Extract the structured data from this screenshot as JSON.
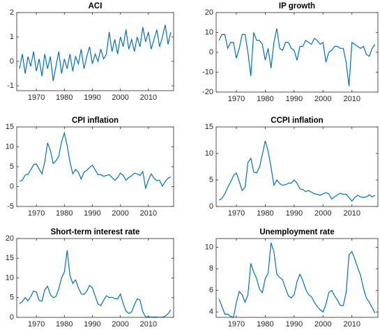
{
  "chart_data": [
    {
      "type": "line",
      "title": "ACI",
      "color": "#0072bd",
      "x": [
        1964,
        1965,
        1966,
        1967,
        1968,
        1969,
        1970,
        1971,
        1972,
        1973,
        1974,
        1975,
        1976,
        1977,
        1978,
        1979,
        1980,
        1981,
        1982,
        1983,
        1984,
        1985,
        1986,
        1987,
        1988,
        1989,
        1990,
        1991,
        1992,
        1993,
        1994,
        1995,
        1996,
        1997,
        1998,
        1999,
        2000,
        2001,
        2002,
        2003,
        2004,
        2005,
        2006,
        2007,
        2008,
        2009,
        2010,
        2011,
        2012,
        2013,
        2014,
        2015,
        2016,
        2017,
        2018
      ],
      "values": [
        -0.3,
        0.3,
        -0.5,
        0.2,
        -0.2,
        0.4,
        -0.4,
        0.1,
        -0.6,
        0.3,
        -0.3,
        0.2,
        -0.8,
        -0.2,
        0.4,
        -0.5,
        0.1,
        -0.3,
        0.3,
        -0.4,
        0.2,
        -0.1,
        0.5,
        -0.3,
        0.2,
        0.6,
        -0.1,
        0.3,
        0,
        0.5,
        0.1,
        0.3,
        1.2,
        0.4,
        0.9,
        0.3,
        1.0,
        0.6,
        1.3,
        0.5,
        0.9,
        0.4,
        1.0,
        0.6,
        1.4,
        0.8,
        1.2,
        0.5,
        0.9,
        1.3,
        0.6,
        1.0,
        1.5,
        0.7,
        1.2
      ],
      "xlim": [
        1963,
        2019
      ],
      "ylim": [
        -1.2,
        2
      ],
      "xticks": [
        1970,
        1980,
        1990,
        2000,
        2010
      ],
      "yticks": [
        -1,
        0,
        1,
        2
      ]
    },
    {
      "type": "line",
      "title": "IP growth",
      "color": "#0072bd",
      "x": [
        1964,
        1965,
        1966,
        1967,
        1968,
        1969,
        1970,
        1971,
        1972,
        1973,
        1974,
        1975,
        1976,
        1977,
        1978,
        1979,
        1980,
        1981,
        1982,
        1983,
        1984,
        1985,
        1986,
        1987,
        1988,
        1989,
        1990,
        1991,
        1992,
        1993,
        1994,
        1995,
        1996,
        1997,
        1998,
        1999,
        2000,
        2001,
        2002,
        2003,
        2004,
        2005,
        2006,
        2007,
        2008,
        2009,
        2010,
        2011,
        2012,
        2013,
        2014,
        2015,
        2016,
        2017,
        2018
      ],
      "values": [
        6,
        9,
        9,
        2,
        5,
        5,
        -3,
        2,
        9,
        9,
        0,
        -12,
        10,
        6,
        6,
        4,
        -4,
        2,
        -8,
        5,
        12,
        2,
        1,
        5,
        5,
        2,
        1,
        -4,
        3,
        3,
        6,
        5,
        4,
        7,
        6,
        4,
        5,
        -5,
        0,
        1,
        3,
        3,
        2,
        2,
        -5,
        -17,
        5,
        4,
        3,
        2,
        3,
        -1,
        -2,
        2,
        4
      ],
      "xlim": [
        1963,
        2019
      ],
      "ylim": [
        -20,
        20
      ],
      "xticks": [
        1970,
        1980,
        1990,
        2000,
        2010
      ],
      "yticks": [
        -20,
        -10,
        0,
        10,
        20
      ]
    },
    {
      "type": "line",
      "title": "CPI inflation",
      "color": "#0072bd",
      "x": [
        1964,
        1965,
        1966,
        1967,
        1968,
        1969,
        1970,
        1971,
        1972,
        1973,
        1974,
        1975,
        1976,
        1977,
        1978,
        1979,
        1980,
        1981,
        1982,
        1983,
        1984,
        1985,
        1986,
        1987,
        1988,
        1989,
        1990,
        1991,
        1992,
        1993,
        1994,
        1995,
        1996,
        1997,
        1998,
        1999,
        2000,
        2001,
        2002,
        2003,
        2004,
        2005,
        2006,
        2007,
        2008,
        2009,
        2010,
        2011,
        2012,
        2013,
        2014,
        2015,
        2016,
        2017,
        2018
      ],
      "values": [
        1.3,
        1.6,
        2.9,
        3.1,
        4.2,
        5.5,
        5.7,
        4.4,
        3.2,
        6.2,
        11.0,
        9.1,
        5.8,
        6.5,
        7.6,
        11.3,
        13.5,
        10.3,
        6.2,
        3.2,
        4.3,
        3.6,
        1.9,
        3.6,
        4.1,
        4.8,
        5.4,
        4.2,
        3.0,
        3.0,
        2.6,
        2.8,
        3.0,
        2.3,
        1.6,
        2.2,
        3.4,
        2.8,
        1.6,
        2.3,
        2.7,
        3.4,
        3.2,
        2.8,
        3.8,
        -0.4,
        1.6,
        3.2,
        2.1,
        1.5,
        1.6,
        0.1,
        1.3,
        2.1,
        2.4
      ],
      "xlim": [
        1963,
        2019
      ],
      "ylim": [
        -5,
        15
      ],
      "xticks": [
        1970,
        1980,
        1990,
        2000,
        2010
      ],
      "yticks": [
        -5,
        0,
        5,
        10,
        15
      ]
    },
    {
      "type": "line",
      "title": "CCPI inflation",
      "color": "#0072bd",
      "x": [
        1964,
        1965,
        1966,
        1967,
        1968,
        1969,
        1970,
        1971,
        1972,
        1973,
        1974,
        1975,
        1976,
        1977,
        1978,
        1979,
        1980,
        1981,
        1982,
        1983,
        1984,
        1985,
        1986,
        1987,
        1988,
        1989,
        1990,
        1991,
        1992,
        1993,
        1994,
        1995,
        1996,
        1997,
        1998,
        1999,
        2000,
        2001,
        2002,
        2003,
        2004,
        2005,
        2006,
        2007,
        2008,
        2009,
        2010,
        2011,
        2012,
        2013,
        2014,
        2015,
        2016,
        2017,
        2018
      ],
      "values": [
        1.2,
        1.5,
        2.4,
        3.6,
        4.6,
        5.8,
        6.3,
        4.7,
        3.0,
        3.6,
        8.3,
        9.1,
        6.5,
        6.3,
        7.4,
        9.8,
        12.4,
        10.4,
        7.4,
        4.0,
        5.0,
        4.3,
        4.0,
        4.1,
        4.4,
        4.4,
        5.0,
        4.4,
        3.3,
        3.2,
        2.8,
        3.0,
        2.7,
        2.4,
        2.3,
        2.1,
        2.4,
        2.6,
        2.4,
        1.4,
        1.8,
        2.2,
        2.5,
        2.3,
        2.3,
        1.7,
        1.0,
        1.7,
        2.1,
        1.8,
        1.7,
        1.8,
        2.2,
        1.8,
        2.1
      ],
      "xlim": [
        1963,
        2019
      ],
      "ylim": [
        0,
        15
      ],
      "xticks": [
        1970,
        1980,
        1990,
        2000,
        2010
      ],
      "yticks": [
        0,
        5,
        10,
        15
      ]
    },
    {
      "type": "line",
      "title": "Short-term interest rate",
      "color": "#0072bd",
      "x": [
        1964,
        1965,
        1966,
        1967,
        1968,
        1969,
        1970,
        1971,
        1972,
        1973,
        1974,
        1975,
        1976,
        1977,
        1978,
        1979,
        1980,
        1981,
        1982,
        1983,
        1984,
        1985,
        1986,
        1987,
        1988,
        1989,
        1990,
        1991,
        1992,
        1993,
        1994,
        1995,
        1996,
        1997,
        1998,
        1999,
        2000,
        2001,
        2002,
        2003,
        2004,
        2005,
        2006,
        2007,
        2008,
        2009,
        2010,
        2011,
        2012,
        2013,
        2014,
        2015,
        2016,
        2017,
        2018
      ],
      "values": [
        3.5,
        4.0,
        5.0,
        4.2,
        5.3,
        6.7,
        6.4,
        4.3,
        4.1,
        7.0,
        7.9,
        5.8,
        5.0,
        5.3,
        7.2,
        10.0,
        11.5,
        17.0,
        10.6,
        8.6,
        9.5,
        7.5,
        6.0,
        5.8,
        6.7,
        8.1,
        7.5,
        5.4,
        3.4,
        3.0,
        4.3,
        5.5,
        5.0,
        5.1,
        4.8,
        4.7,
        5.9,
        3.5,
        1.6,
        1.0,
        1.4,
        3.2,
        4.7,
        4.4,
        1.4,
        0.15,
        0.14,
        0.05,
        0.09,
        0.06,
        0.03,
        0.05,
        0.3,
        0.9,
        1.9
      ],
      "xlim": [
        1963,
        2019
      ],
      "ylim": [
        0,
        20
      ],
      "xticks": [
        1970,
        1980,
        1990,
        2000,
        2010
      ],
      "yticks": [
        0,
        5,
        10,
        15,
        20
      ]
    },
    {
      "type": "line",
      "title": "Unemployment rate",
      "color": "#0072bd",
      "x": [
        1964,
        1965,
        1966,
        1967,
        1968,
        1969,
        1970,
        1971,
        1972,
        1973,
        1974,
        1975,
        1976,
        1977,
        1978,
        1979,
        1980,
        1981,
        1982,
        1983,
        1984,
        1985,
        1986,
        1987,
        1988,
        1989,
        1990,
        1991,
        1992,
        1993,
        1994,
        1995,
        1996,
        1997,
        1998,
        1999,
        2000,
        2001,
        2002,
        2003,
        2004,
        2005,
        2006,
        2007,
        2008,
        2009,
        2010,
        2011,
        2012,
        2013,
        2014,
        2015,
        2016,
        2017,
        2018
      ],
      "values": [
        5.2,
        4.5,
        3.8,
        3.8,
        3.6,
        3.5,
        4.9,
        5.9,
        5.6,
        4.9,
        5.6,
        8.5,
        7.7,
        7.1,
        6.1,
        5.8,
        7.1,
        7.6,
        10.4,
        9.6,
        7.5,
        7.2,
        7.0,
        6.2,
        5.5,
        5.3,
        5.6,
        6.8,
        7.5,
        6.9,
        6.1,
        5.6,
        5.4,
        4.9,
        4.5,
        4.2,
        4.0,
        4.7,
        5.8,
        6.0,
        5.5,
        5.1,
        4.6,
        4.6,
        5.8,
        9.3,
        9.6,
        8.9,
        8.1,
        7.4,
        6.2,
        5.3,
        4.9,
        4.4,
        3.9
      ],
      "xlim": [
        1963,
        2019
      ],
      "ylim": [
        3.5,
        10.8
      ],
      "xticks": [
        1970,
        1980,
        1990,
        2000,
        2010
      ],
      "yticks": [
        4,
        6,
        8,
        10
      ]
    }
  ]
}
